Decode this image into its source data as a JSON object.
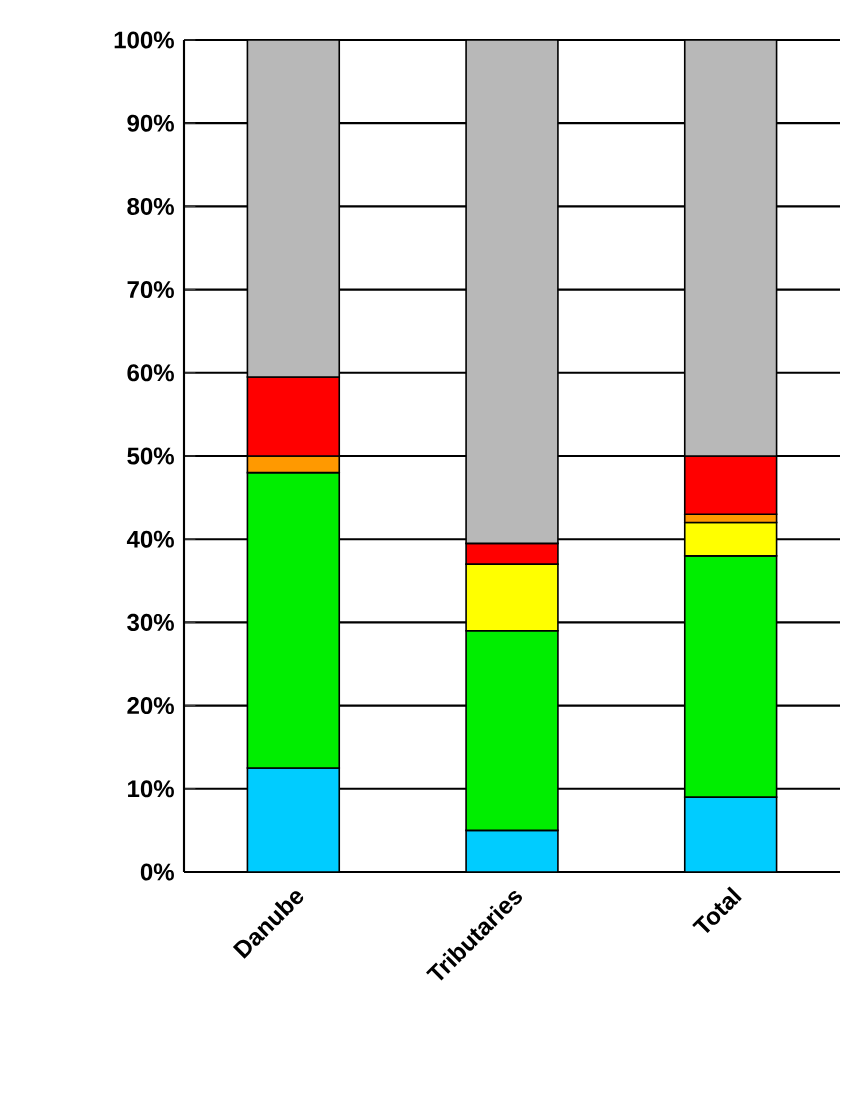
{
  "chart_data": {
    "type": "bar",
    "stacked": true,
    "categories": [
      "Danube",
      "Tributaries",
      "Total"
    ],
    "series": [
      {
        "color": "#00ccff",
        "values": [
          12.5,
          5,
          9
        ]
      },
      {
        "color": "#00ee00",
        "values": [
          35.5,
          24,
          29
        ]
      },
      {
        "color": "#ffff00",
        "values": [
          null,
          8,
          4
        ]
      },
      {
        "color": "#ff9900",
        "values": [
          2,
          null,
          1
        ]
      },
      {
        "color": "#ff0000",
        "values": [
          9.5,
          2.5,
          7
        ]
      },
      {
        "color": "#b8b8b8",
        "values": [
          40.5,
          60.5,
          50
        ]
      }
    ],
    "ylim": [
      0,
      100
    ],
    "yticks": [
      {
        "value": 0,
        "label": "0%"
      },
      {
        "value": 10,
        "label": "10%"
      },
      {
        "value": 20,
        "label": "20%"
      },
      {
        "value": 30,
        "label": "30%"
      },
      {
        "value": 40,
        "label": "40%"
      },
      {
        "value": 50,
        "label": "50%"
      },
      {
        "value": 60,
        "label": "60%"
      },
      {
        "value": 70,
        "label": "70%"
      },
      {
        "value": 80,
        "label": "80%"
      },
      {
        "value": 90,
        "label": "90%"
      },
      {
        "value": 100,
        "label": "100%"
      }
    ],
    "grid": "y"
  }
}
